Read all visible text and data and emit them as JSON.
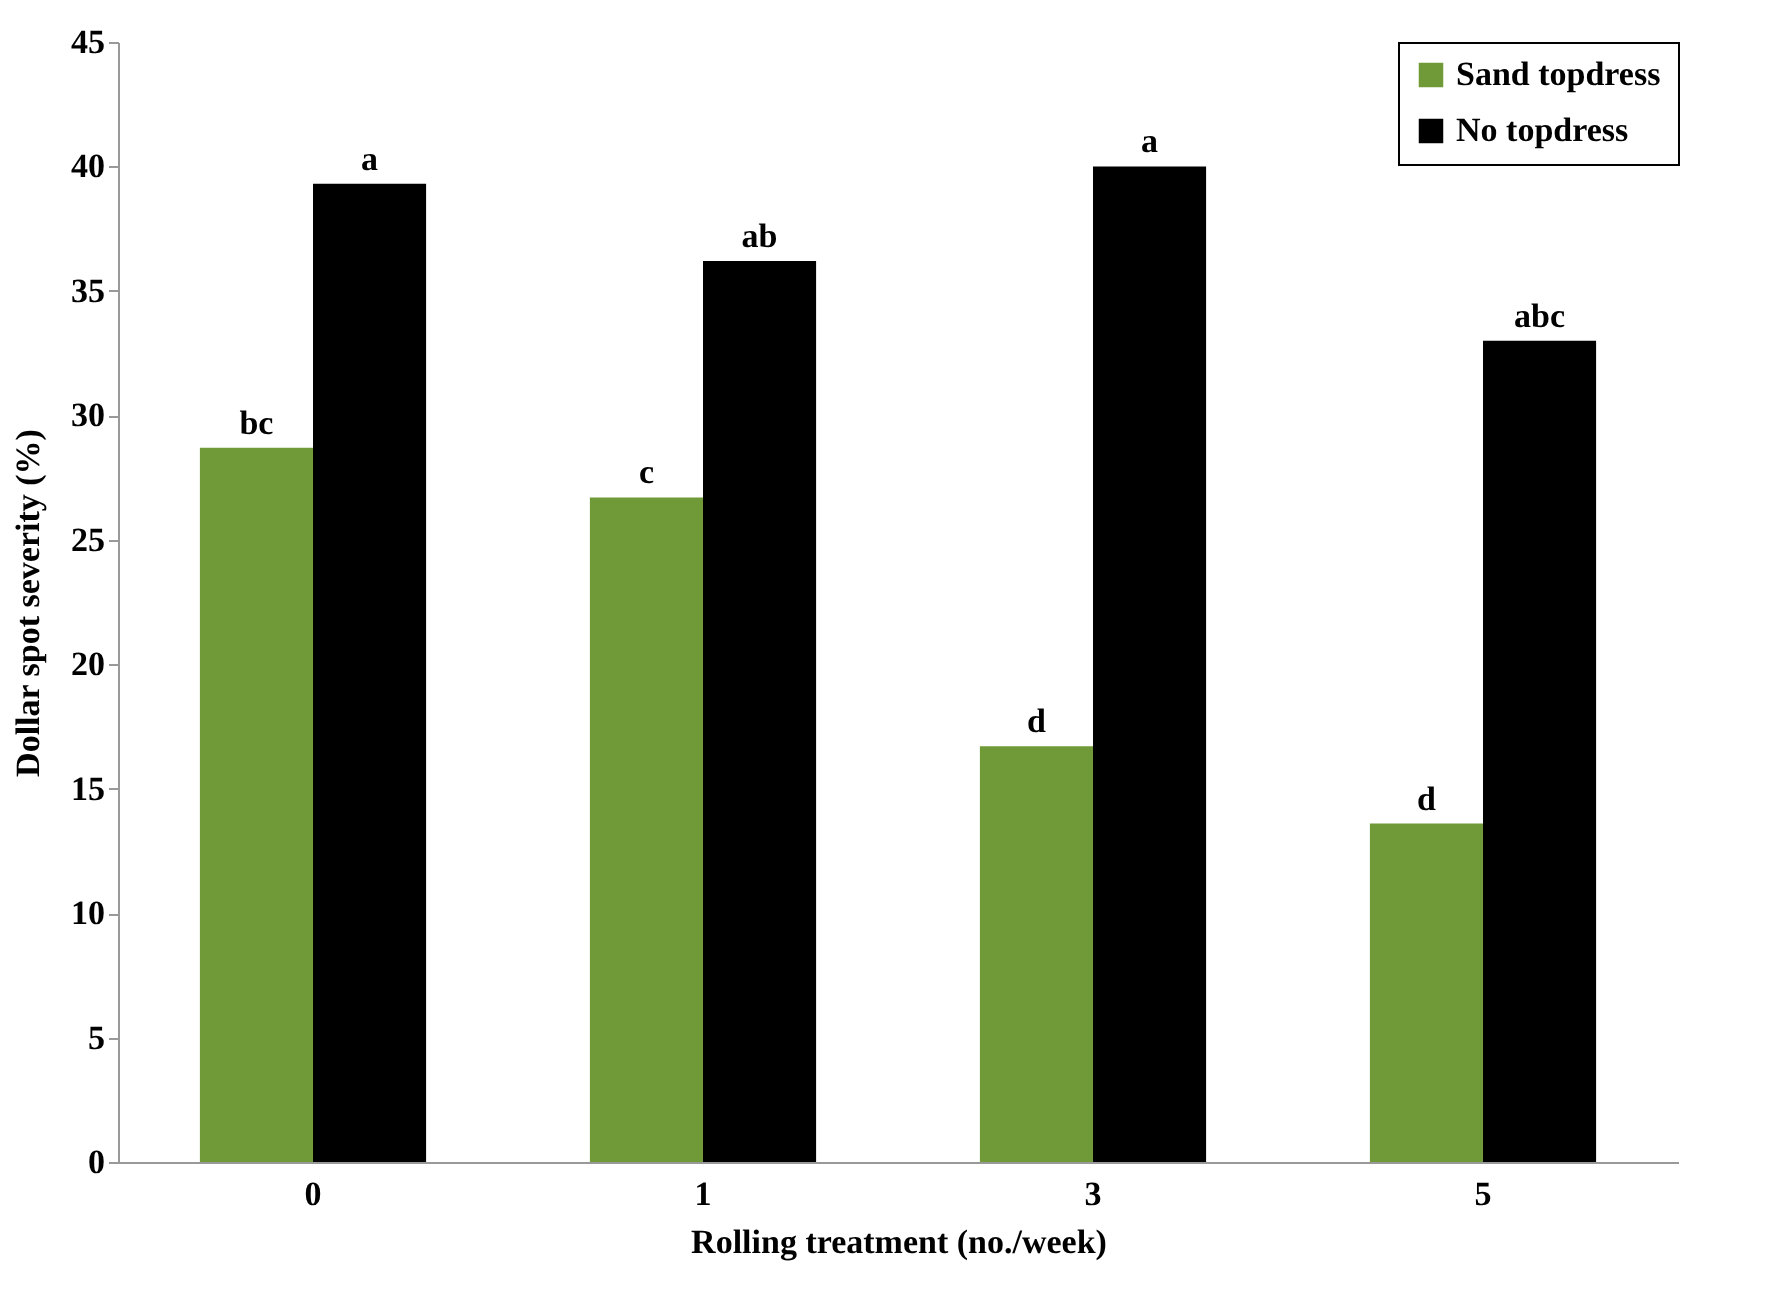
{
  "chart_data": {
    "type": "bar",
    "xlabel": "Rolling treatment (no./week)",
    "ylabel": "Dollar spot severity (%)",
    "categories": [
      "0",
      "1",
      "3",
      "5"
    ],
    "series": [
      {
        "name": "Sand topdress",
        "color": "#6f9a37",
        "values": [
          28.7,
          26.7,
          16.7,
          13.6
        ]
      },
      {
        "name": "No topdress",
        "color": "#000000",
        "values": [
          39.3,
          36.2,
          40.0,
          33.0
        ]
      }
    ],
    "ylim": [
      0,
      45
    ],
    "yticks": [
      0,
      5,
      10,
      15,
      20,
      25,
      30,
      35,
      40,
      45
    ],
    "grid": false,
    "legend": "top right",
    "annotations": [
      {
        "text": "bc",
        "x": "0",
        "y": 28.7
      },
      {
        "text": "a",
        "x": "0",
        "y": 39.3
      },
      {
        "text": "c",
        "x": "1",
        "y": 26.7
      },
      {
        "text": "ab",
        "x": "1",
        "y": 36.2
      },
      {
        "text": "d",
        "x": "3",
        "y": 16.7
      },
      {
        "text": "a",
        "x": "3",
        "y": 40.0
      },
      {
        "text": "d",
        "x": "5",
        "y": 13.6
      },
      {
        "text": "abc",
        "x": "5",
        "y": 33.0
      }
    ]
  }
}
